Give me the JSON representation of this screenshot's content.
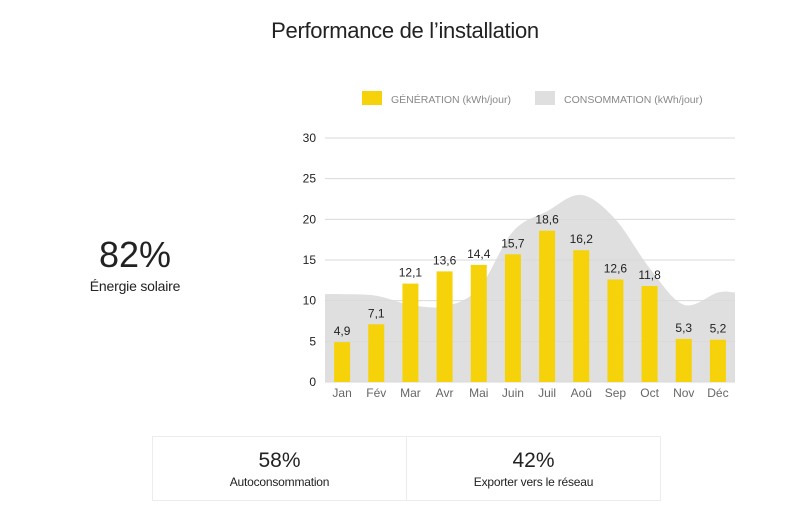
{
  "page": {
    "title": "Performance de l’installation"
  },
  "kpi": {
    "solar_value": "82%",
    "solar_label": "Énergie solaire"
  },
  "cards": [
    {
      "value": "58%",
      "label": "Autoconsommation"
    },
    {
      "value": "42%",
      "label": "Exporter vers le réseau"
    }
  ],
  "colors": {
    "generation": "#f5d20a",
    "consumption": "#e0dfdf",
    "grid": "#d9d9d9",
    "text": "#222222",
    "axis_text": "#666666"
  },
  "chart_data": {
    "type": "bar",
    "categories": [
      "Jan",
      "Fév",
      "Mar",
      "Avr",
      "Mai",
      "Juin",
      "Juil",
      "Aoû",
      "Sep",
      "Oct",
      "Nov",
      "Déc"
    ],
    "series": [
      {
        "name": "GÉNÉRATION (kWh/jour)",
        "type": "bar",
        "values": [
          4.9,
          7.1,
          12.1,
          13.6,
          14.4,
          15.7,
          18.6,
          16.2,
          12.6,
          11.8,
          5.3,
          5.2
        ],
        "labels": [
          "4,9",
          "7,1",
          "12,1",
          "13,6",
          "14,4",
          "15,7",
          "18,6",
          "16,2",
          "12,6",
          "11,8",
          "5,3",
          "5,2"
        ]
      },
      {
        "name": "CONSOMMATION (kWh/jour)",
        "type": "area",
        "values": [
          10.8,
          10.6,
          9.5,
          9.3,
          11.5,
          18.5,
          21,
          23,
          20,
          14,
          9.5,
          11
        ]
      }
    ],
    "ylim": [
      0,
      30
    ],
    "yticks": [
      0,
      5,
      10,
      15,
      20,
      25,
      30
    ],
    "grid": true,
    "legend_position": "top"
  }
}
